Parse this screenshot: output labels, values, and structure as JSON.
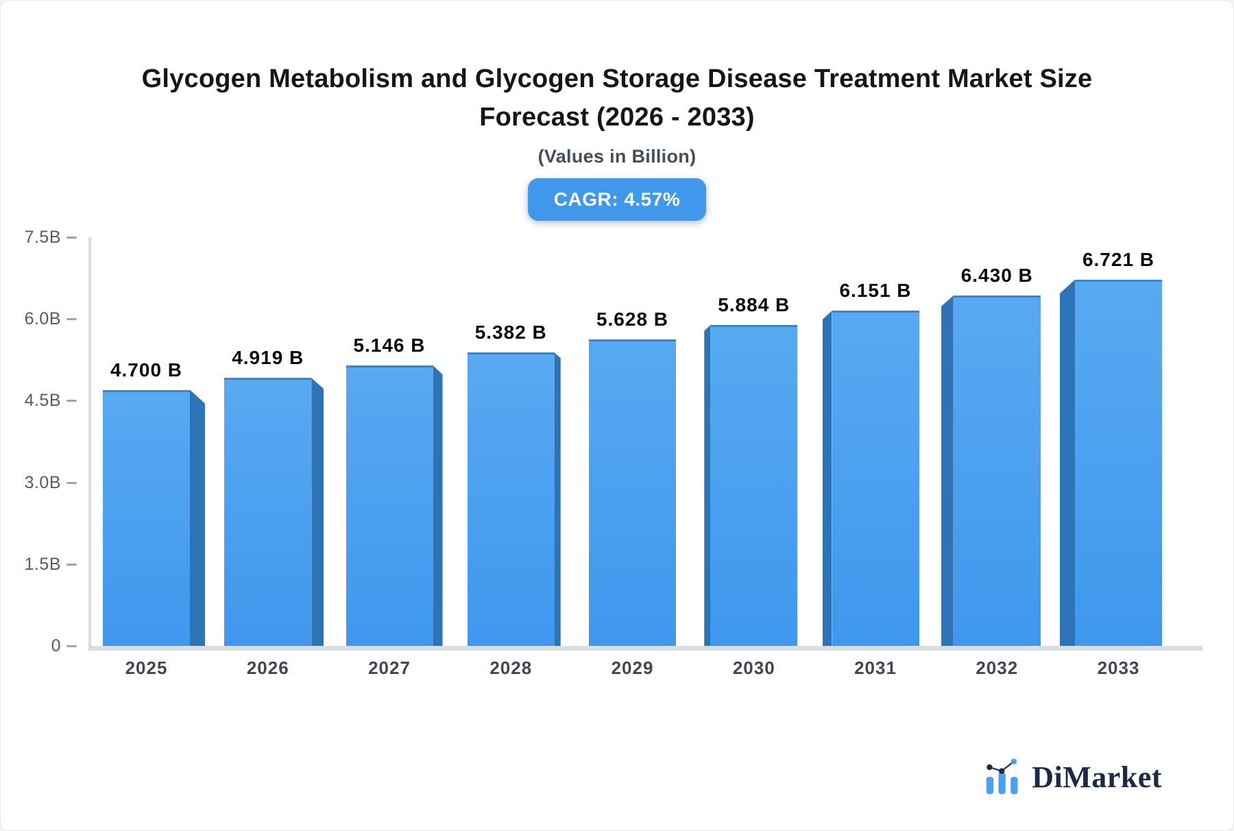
{
  "title": {
    "line1": "Glycogen Metabolism and Glycogen Storage Disease Treatment Market Size",
    "line2": "Forecast (2026 - 2033)"
  },
  "subtitle": "(Values in Billion)",
  "badge": {
    "label": "CAGR: 4.57%",
    "background_color": "#3f98ec",
    "text_color": "#ffffff"
  },
  "chart_data": {
    "type": "bar",
    "title": "Glycogen Metabolism and Glycogen Storage Disease Treatment Market Size Forecast (2026 - 2033)",
    "subtitle": "(Values in Billion)",
    "categories": [
      "2025",
      "2026",
      "2027",
      "2028",
      "2029",
      "2030",
      "2031",
      "2032",
      "2033"
    ],
    "values": [
      4.7,
      4.919,
      5.146,
      5.382,
      5.628,
      5.884,
      6.151,
      6.43,
      6.721
    ],
    "value_labels": [
      "4.700 B",
      "4.919 B",
      "5.146 B",
      "5.382 B",
      "5.628 B",
      "5.884 B",
      "6.151 B",
      "6.430 B",
      "6.721 B"
    ],
    "unit": "B",
    "ylim": [
      0,
      7.5
    ],
    "ytick_labels": [
      "7.5B",
      "6.0B",
      "4.5B",
      "3.0B",
      "1.5B",
      "0"
    ],
    "ytick_values": [
      7.5,
      6.0,
      4.5,
      3.0,
      1.5,
      0
    ],
    "grid": "off",
    "legend": "none",
    "bar_face_color_top": "#57a9f1",
    "bar_face_color_bottom": "#3f98ee",
    "bar_side_color": "#2d74b6",
    "bar_top_edge_color": "#3585d2",
    "axis_color": "#d9dce1"
  },
  "logo": {
    "text": "DiMarket",
    "text_color": "#1b2a47",
    "icon_blue": "#4aa0f5",
    "icon_navy": "#1b2a47"
  }
}
